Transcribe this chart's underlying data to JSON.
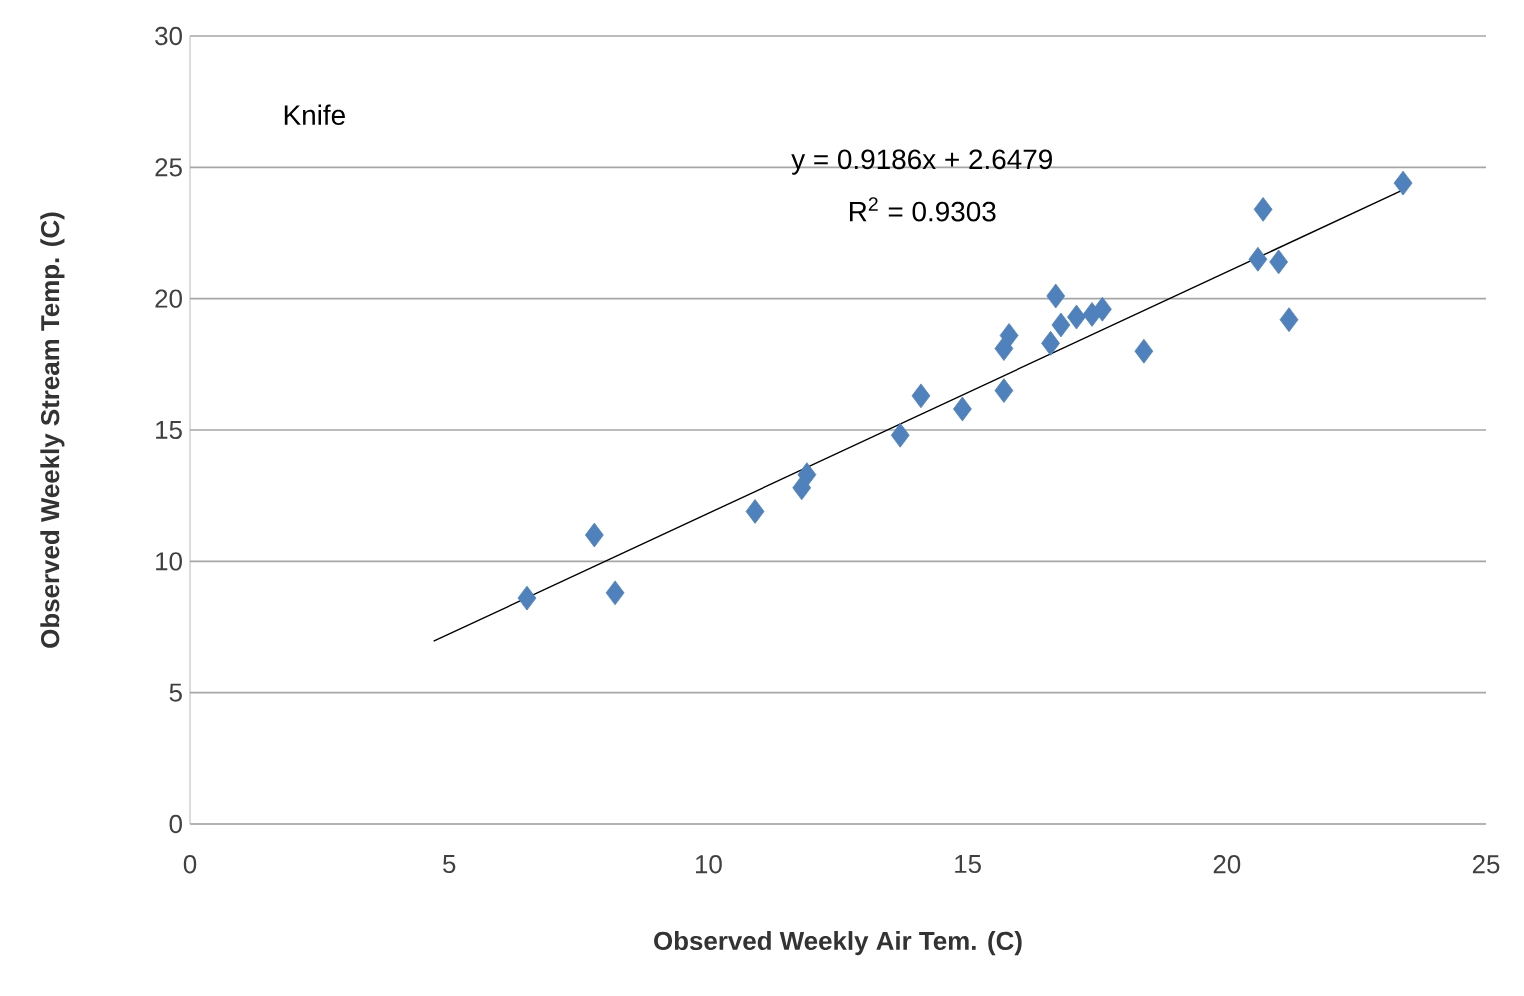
{
  "chart_data": {
    "type": "scatter",
    "xlabel": "Observed Weekly Air Tem. (C)",
    "ylabel": "Observed Weekly Stream Temp. (C)",
    "xlim": [
      0,
      25
    ],
    "ylim": [
      0,
      30
    ],
    "xticks": [
      0,
      5,
      10,
      15,
      20,
      25
    ],
    "yticks": [
      0,
      5,
      10,
      15,
      20,
      25,
      30
    ],
    "grid": "y",
    "marker": "diamond",
    "annotations": [
      "Knife",
      "y = 0.9186x + 2.6479",
      "R$^{2}$ = 0.9303"
    ],
    "series": [
      {
        "color": "#4f81bd",
        "x": [
          6.5,
          7.8,
          8.2,
          10.9,
          11.8,
          11.9,
          13.7,
          14.1,
          14.9,
          15.7,
          15.7,
          15.8,
          16.6,
          16.7,
          16.8,
          17.1,
          17.4,
          17.6,
          18.4,
          20.6,
          20.7,
          21.0,
          21.2,
          23.4
        ],
        "values": [
          8.6,
          11.0,
          8.8,
          11.9,
          12.8,
          13.3,
          14.8,
          16.3,
          15.8,
          16.5,
          18.1,
          18.6,
          18.3,
          20.1,
          19.0,
          19.3,
          19.4,
          19.6,
          18.0,
          21.5,
          23.4,
          21.4,
          19.2,
          24.4
        ]
      },
      {
        "type": "line",
        "color": "#000000",
        "marker": "none",
        "x": [
          4.7,
          23.4
        ],
        "values": [
          6.96,
          24.14
        ]
      }
    ]
  }
}
